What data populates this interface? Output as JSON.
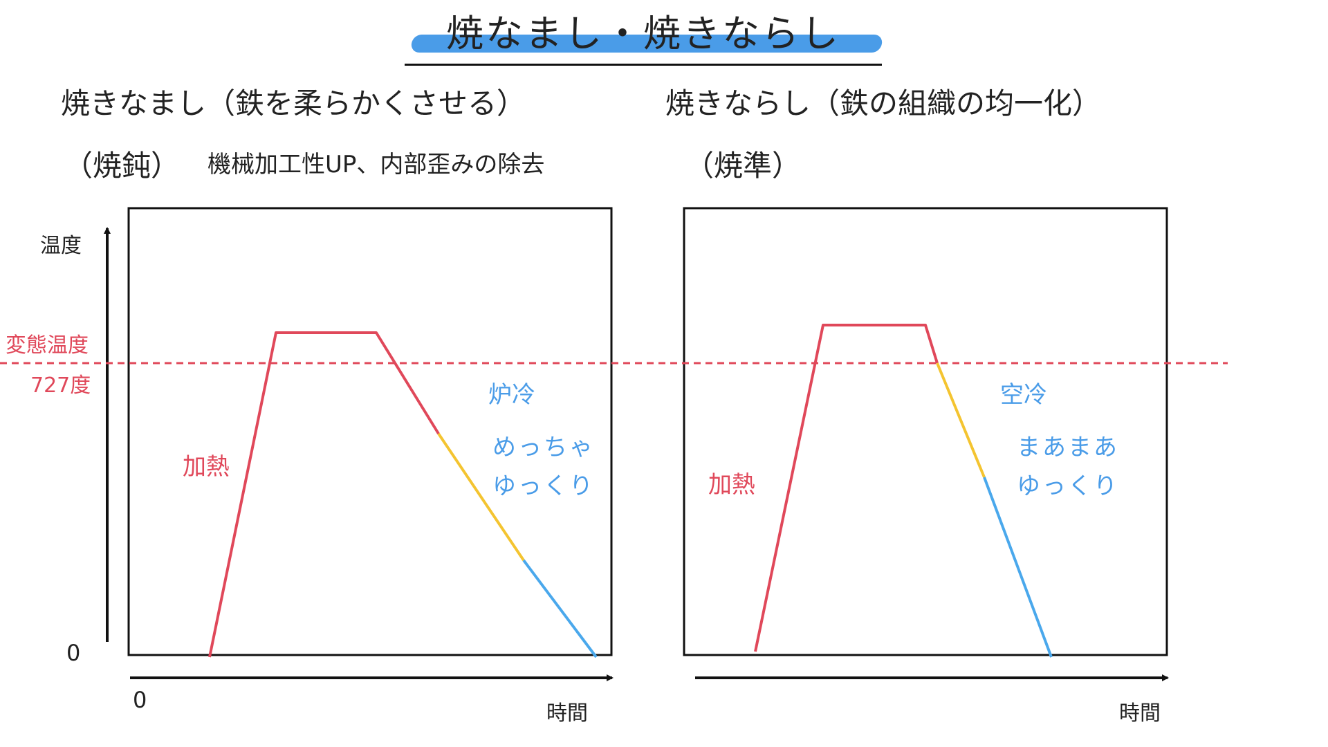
{
  "title": "焼なまし・焼きならし",
  "left": {
    "heading": "焼きなまし（鉄を柔らかくさせる）",
    "kanji": "（焼鈍）",
    "purpose": "機械加工性UP、内部歪みの除去",
    "heating_label": "加熱",
    "cooling_method": "炉冷",
    "cooling_speed_line1": "めっちゃ",
    "cooling_speed_line2": "ゆっくり",
    "x_axis_label": "時間"
  },
  "right": {
    "heading": "焼きならし（鉄の組織の均一化）",
    "kanji": "（焼準）",
    "heating_label": "加熱",
    "cooling_method": "空冷",
    "cooling_speed_line1": "まあまあ",
    "cooling_speed_line2": "ゆっくり",
    "x_axis_label": "時間"
  },
  "y_axis_label": "温度",
  "transformation_label": "変態温度",
  "transformation_value": "727度",
  "y_origin": "0",
  "x_origin": "0",
  "colors": {
    "heating": "#e0485a",
    "cooling_medium": "#f4c430",
    "cooling_slow": "#4aa8ec",
    "transformation_line": "#e0485a",
    "title_highlight": "#4a9ce8",
    "annotation_blue": "#4a9ce8"
  }
}
